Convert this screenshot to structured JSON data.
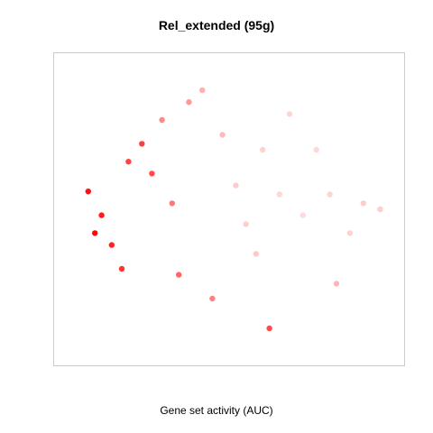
{
  "chart_data": {
    "type": "scatter",
    "title": "Rel_extended (95g)",
    "xlabel": "Gene set activity (AUC)",
    "ylabel": "",
    "grid": false,
    "legend": "none",
    "color_scale": {
      "low": "#fbe4e2",
      "high": "#ff0000",
      "mid": "#ffaaaa"
    },
    "series": [
      {
        "values": [
          {
            "x": 0.08,
            "y": 0.56,
            "v": 0.95
          },
          {
            "x": 0.1,
            "y": 0.42,
            "v": 0.98
          },
          {
            "x": 0.12,
            "y": 0.48,
            "v": 0.92
          },
          {
            "x": 0.15,
            "y": 0.38,
            "v": 0.9
          },
          {
            "x": 0.18,
            "y": 0.3,
            "v": 0.85
          },
          {
            "x": 0.2,
            "y": 0.66,
            "v": 0.8
          },
          {
            "x": 0.24,
            "y": 0.72,
            "v": 0.82
          },
          {
            "x": 0.27,
            "y": 0.62,
            "v": 0.78
          },
          {
            "x": 0.3,
            "y": 0.8,
            "v": 0.6
          },
          {
            "x": 0.33,
            "y": 0.52,
            "v": 0.65
          },
          {
            "x": 0.35,
            "y": 0.28,
            "v": 0.7
          },
          {
            "x": 0.38,
            "y": 0.86,
            "v": 0.55
          },
          {
            "x": 0.42,
            "y": 0.9,
            "v": 0.45
          },
          {
            "x": 0.45,
            "y": 0.2,
            "v": 0.62
          },
          {
            "x": 0.48,
            "y": 0.75,
            "v": 0.35
          },
          {
            "x": 0.52,
            "y": 0.58,
            "v": 0.2
          },
          {
            "x": 0.55,
            "y": 0.45,
            "v": 0.18
          },
          {
            "x": 0.58,
            "y": 0.35,
            "v": 0.22
          },
          {
            "x": 0.6,
            "y": 0.7,
            "v": 0.15
          },
          {
            "x": 0.62,
            "y": 0.1,
            "v": 0.78
          },
          {
            "x": 0.65,
            "y": 0.55,
            "v": 0.1
          },
          {
            "x": 0.68,
            "y": 0.82,
            "v": 0.12
          },
          {
            "x": 0.72,
            "y": 0.48,
            "v": 0.08
          },
          {
            "x": 0.76,
            "y": 0.7,
            "v": 0.1
          },
          {
            "x": 0.8,
            "y": 0.55,
            "v": 0.12
          },
          {
            "x": 0.82,
            "y": 0.25,
            "v": 0.4
          },
          {
            "x": 0.86,
            "y": 0.42,
            "v": 0.15
          },
          {
            "x": 0.9,
            "y": 0.52,
            "v": 0.2
          },
          {
            "x": 0.95,
            "y": 0.5,
            "v": 0.18
          }
        ]
      }
    ]
  }
}
